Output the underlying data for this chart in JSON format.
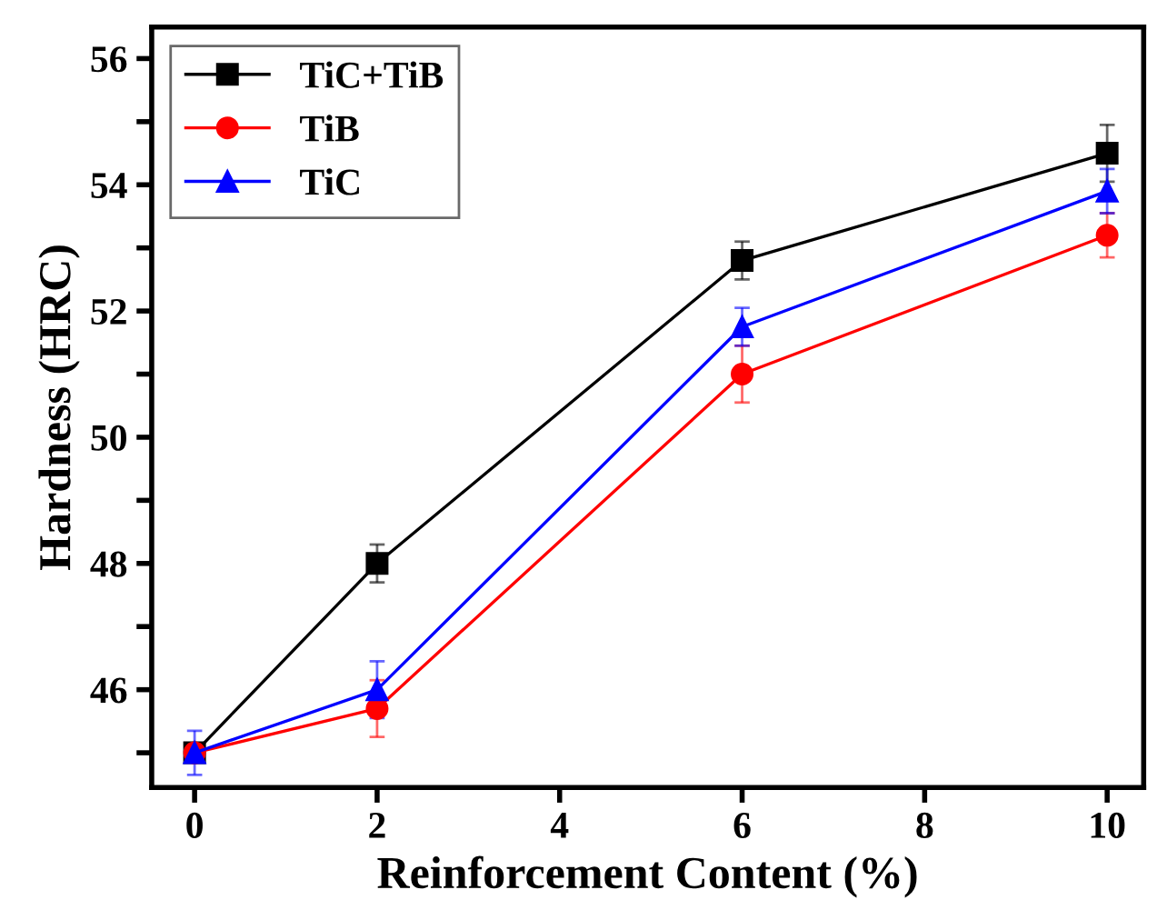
{
  "chart_data": {
    "type": "line",
    "xlabel": "Reinforcement Content (%)",
    "ylabel": "Hardness (HRC)",
    "x": [
      0,
      2,
      6,
      10
    ],
    "series": [
      {
        "name": "TiC+TiB",
        "color": "#000000",
        "marker": "square",
        "values": [
          45,
          48,
          52.8,
          54.5
        ],
        "errors": [
          null,
          0.3,
          0.3,
          0.45
        ]
      },
      {
        "name": "TiB",
        "color": "#ff0000",
        "marker": "circle",
        "values": [
          45,
          45.7,
          51,
          53.2
        ],
        "errors": [
          null,
          0.45,
          0.45,
          0.35
        ]
      },
      {
        "name": "TiC",
        "color": "#0000ff",
        "marker": "triangle",
        "values": [
          45,
          46,
          51.75,
          53.9
        ],
        "errors": [
          0.35,
          0.45,
          0.3,
          0.35
        ]
      }
    ],
    "xlim": [
      -0.47,
      10.4
    ],
    "ylim": [
      44.45,
      56.5
    ],
    "xticks": [
      0,
      2,
      4,
      6,
      8,
      10
    ],
    "yticks": [
      {
        "value": 45,
        "label": null
      },
      46,
      {
        "value": 47,
        "label": null
      },
      48,
      {
        "value": 49,
        "label": null
      },
      50,
      {
        "value": 51,
        "label": null
      },
      52,
      {
        "value": 53,
        "label": null
      },
      54,
      {
        "value": 55,
        "label": null
      },
      56
    ],
    "legend": "top left",
    "grid": false,
    "line_style": "solid"
  }
}
